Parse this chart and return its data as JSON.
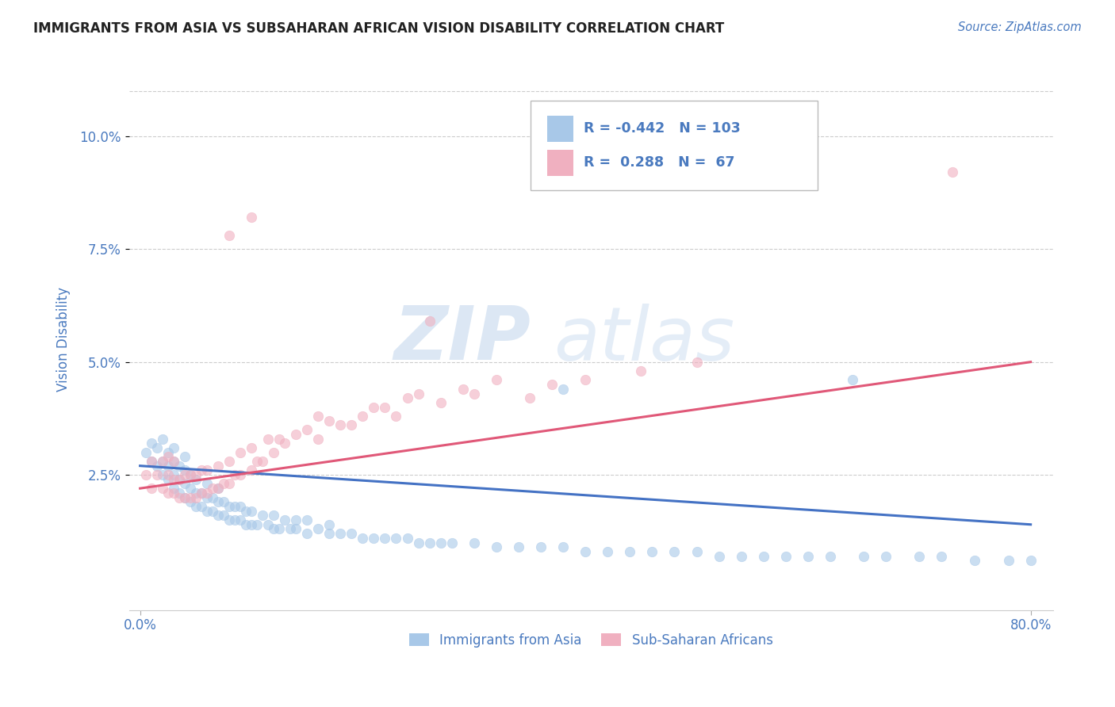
{
  "title": "IMMIGRANTS FROM ASIA VS SUBSAHARAN AFRICAN VISION DISABILITY CORRELATION CHART",
  "source": "Source: ZipAtlas.com",
  "ylabel": "Vision Disability",
  "xlim": [
    -0.01,
    0.82
  ],
  "ylim": [
    -0.005,
    0.115
  ],
  "xticks": [
    0.0,
    0.8
  ],
  "xtick_labels": [
    "0.0%",
    "80.0%"
  ],
  "yticks": [
    0.025,
    0.05,
    0.075,
    0.1
  ],
  "ytick_labels": [
    "2.5%",
    "5.0%",
    "7.5%",
    "10.0%"
  ],
  "grid_color": "#cccccc",
  "background_color": "#ffffff",
  "watermark_zip": "ZIP",
  "watermark_atlas": "atlas",
  "legend_R_blue": "-0.442",
  "legend_N_blue": "103",
  "legend_R_pink": "0.288",
  "legend_N_pink": "67",
  "blue_color": "#a8c8e8",
  "pink_color": "#f0b0c0",
  "blue_line_color": "#4472c4",
  "pink_line_color": "#e05878",
  "tick_color": "#4a7abf",
  "blue_line_start_y": 0.027,
  "blue_line_end_y": 0.014,
  "pink_line_start_y": 0.022,
  "pink_line_end_y": 0.05,
  "blue_scatter_x": [
    0.005,
    0.01,
    0.01,
    0.015,
    0.015,
    0.02,
    0.02,
    0.02,
    0.025,
    0.025,
    0.025,
    0.03,
    0.03,
    0.03,
    0.03,
    0.035,
    0.035,
    0.035,
    0.04,
    0.04,
    0.04,
    0.04,
    0.045,
    0.045,
    0.045,
    0.05,
    0.05,
    0.05,
    0.055,
    0.055,
    0.06,
    0.06,
    0.06,
    0.065,
    0.065,
    0.07,
    0.07,
    0.07,
    0.075,
    0.075,
    0.08,
    0.08,
    0.085,
    0.085,
    0.09,
    0.09,
    0.095,
    0.095,
    0.1,
    0.1,
    0.105,
    0.11,
    0.115,
    0.12,
    0.12,
    0.125,
    0.13,
    0.135,
    0.14,
    0.14,
    0.15,
    0.15,
    0.16,
    0.17,
    0.17,
    0.18,
    0.19,
    0.2,
    0.21,
    0.22,
    0.23,
    0.24,
    0.25,
    0.26,
    0.27,
    0.28,
    0.3,
    0.32,
    0.34,
    0.36,
    0.38,
    0.4,
    0.42,
    0.44,
    0.46,
    0.48,
    0.5,
    0.52,
    0.54,
    0.56,
    0.58,
    0.6,
    0.62,
    0.65,
    0.67,
    0.7,
    0.72,
    0.75,
    0.78,
    0.8,
    0.38,
    0.64
  ],
  "blue_scatter_y": [
    0.03,
    0.028,
    0.032,
    0.027,
    0.031,
    0.025,
    0.028,
    0.033,
    0.024,
    0.027,
    0.03,
    0.022,
    0.025,
    0.028,
    0.031,
    0.021,
    0.024,
    0.027,
    0.02,
    0.023,
    0.026,
    0.029,
    0.019,
    0.022,
    0.025,
    0.018,
    0.021,
    0.024,
    0.018,
    0.021,
    0.017,
    0.02,
    0.023,
    0.017,
    0.02,
    0.016,
    0.019,
    0.022,
    0.016,
    0.019,
    0.015,
    0.018,
    0.015,
    0.018,
    0.015,
    0.018,
    0.014,
    0.017,
    0.014,
    0.017,
    0.014,
    0.016,
    0.014,
    0.013,
    0.016,
    0.013,
    0.015,
    0.013,
    0.013,
    0.015,
    0.012,
    0.015,
    0.013,
    0.012,
    0.014,
    0.012,
    0.012,
    0.011,
    0.011,
    0.011,
    0.011,
    0.011,
    0.01,
    0.01,
    0.01,
    0.01,
    0.01,
    0.009,
    0.009,
    0.009,
    0.009,
    0.008,
    0.008,
    0.008,
    0.008,
    0.008,
    0.008,
    0.007,
    0.007,
    0.007,
    0.007,
    0.007,
    0.007,
    0.007,
    0.007,
    0.007,
    0.007,
    0.006,
    0.006,
    0.006,
    0.044,
    0.046
  ],
  "pink_scatter_x": [
    0.005,
    0.01,
    0.01,
    0.015,
    0.02,
    0.02,
    0.025,
    0.025,
    0.025,
    0.03,
    0.03,
    0.03,
    0.035,
    0.035,
    0.04,
    0.04,
    0.045,
    0.045,
    0.05,
    0.05,
    0.055,
    0.055,
    0.06,
    0.06,
    0.065,
    0.07,
    0.07,
    0.075,
    0.08,
    0.08,
    0.085,
    0.09,
    0.09,
    0.1,
    0.1,
    0.105,
    0.11,
    0.115,
    0.12,
    0.125,
    0.13,
    0.14,
    0.15,
    0.16,
    0.16,
    0.17,
    0.18,
    0.19,
    0.2,
    0.21,
    0.22,
    0.23,
    0.24,
    0.25,
    0.27,
    0.29,
    0.3,
    0.32,
    0.35,
    0.37,
    0.4,
    0.45,
    0.5,
    0.26,
    0.08,
    0.1,
    0.73
  ],
  "pink_scatter_y": [
    0.025,
    0.022,
    0.028,
    0.025,
    0.022,
    0.028,
    0.021,
    0.025,
    0.029,
    0.021,
    0.024,
    0.028,
    0.02,
    0.024,
    0.02,
    0.025,
    0.02,
    0.025,
    0.02,
    0.025,
    0.021,
    0.026,
    0.021,
    0.026,
    0.022,
    0.022,
    0.027,
    0.023,
    0.023,
    0.028,
    0.025,
    0.025,
    0.03,
    0.026,
    0.031,
    0.028,
    0.028,
    0.033,
    0.03,
    0.033,
    0.032,
    0.034,
    0.035,
    0.033,
    0.038,
    0.037,
    0.036,
    0.036,
    0.038,
    0.04,
    0.04,
    0.038,
    0.042,
    0.043,
    0.041,
    0.044,
    0.043,
    0.046,
    0.042,
    0.045,
    0.046,
    0.048,
    0.05,
    0.059,
    0.078,
    0.082,
    0.092
  ]
}
